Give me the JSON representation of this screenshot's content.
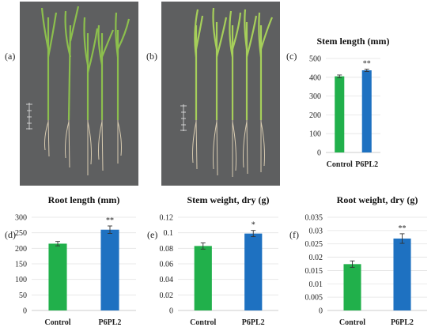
{
  "panel_labels": {
    "a": "(a)",
    "b": "(b)",
    "c": "(c)",
    "d": "(d)",
    "e": "(e)",
    "f": "(f)"
  },
  "colors": {
    "control": "#21b04b",
    "treatment": "#1e71c1",
    "photo_bg": "#5e5f60"
  },
  "chart_data": [
    {
      "id": "c",
      "type": "bar",
      "title": "Stem length (mm)",
      "categories": [
        "Control",
        "P6PL2"
      ],
      "values": [
        405,
        437
      ],
      "errors": [
        7,
        6
      ],
      "significance": [
        "",
        "**"
      ],
      "ylim": [
        0,
        500
      ],
      "yticks": [
        "0",
        "100",
        "200",
        "300",
        "400",
        "500"
      ],
      "xlabel": "",
      "ylabel": ""
    },
    {
      "id": "d",
      "type": "bar",
      "title": "Root length (mm)",
      "categories": [
        "Control",
        "P6PL2"
      ],
      "values": [
        215,
        260
      ],
      "errors": [
        7,
        12
      ],
      "significance": [
        "",
        "**"
      ],
      "ylim": [
        0,
        300
      ],
      "yticks": [
        "0",
        "50",
        "100",
        "150",
        "200",
        "250",
        "300"
      ],
      "xlabel": "",
      "ylabel": ""
    },
    {
      "id": "e",
      "type": "bar",
      "title": "Stem weight, dry (g)",
      "categories": [
        "Control",
        "P6PL2"
      ],
      "values": [
        0.083,
        0.099
      ],
      "errors": [
        0.004,
        0.004
      ],
      "significance": [
        "",
        "*"
      ],
      "ylim": [
        0,
        0.12
      ],
      "yticks": [
        "0",
        "0.02",
        "0.04",
        "0.06",
        "0.08",
        "0.1",
        "0.12"
      ],
      "xlabel": "",
      "ylabel": ""
    },
    {
      "id": "f",
      "type": "bar",
      "title": "Root weight, dry (g)",
      "categories": [
        "Control",
        "P6PL2"
      ],
      "values": [
        0.0174,
        0.027
      ],
      "errors": [
        0.0012,
        0.0018
      ],
      "significance": [
        "",
        "**"
      ],
      "ylim": [
        0,
        0.035
      ],
      "yticks": [
        "0",
        "0.005",
        "0.01",
        "0.015",
        "0.02",
        "0.025",
        "0.03",
        "0.035"
      ],
      "xlabel": "",
      "ylabel": ""
    }
  ]
}
